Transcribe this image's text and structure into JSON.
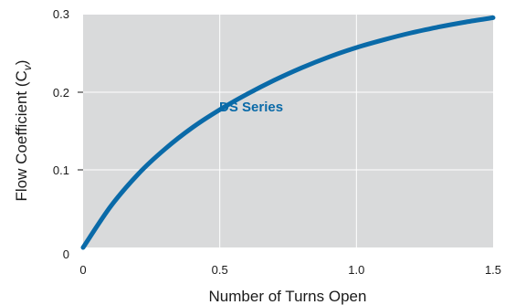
{
  "chart_data": {
    "type": "line",
    "xlabel": "Number of Turns Open",
    "ylabel_main": "Flow Coefficient (C",
    "ylabel_sub": "v",
    "ylabel_close": ")",
    "xlim": [
      0,
      1.5
    ],
    "ylim": [
      0,
      0.3
    ],
    "x_ticks": [
      "0",
      "0.5",
      "1.0",
      "1.5"
    ],
    "y_ticks": [
      "0",
      "0.1",
      "0.2",
      "0.3"
    ],
    "grid": true,
    "colors": {
      "plot_background": "#d9dadb",
      "grid": "#ffffff",
      "series": "#0a6aa8"
    },
    "series": [
      {
        "name": "DS Series",
        "x": [
          0,
          0.1,
          0.2,
          0.3,
          0.4,
          0.5,
          0.6,
          0.7,
          0.8,
          0.9,
          1.0,
          1.1,
          1.2,
          1.3,
          1.4,
          1.5
        ],
        "y": [
          0.0,
          0.0525,
          0.094,
          0.127,
          0.1545,
          0.1775,
          0.1975,
          0.2155,
          0.2315,
          0.2455,
          0.2575,
          0.2675,
          0.2765,
          0.284,
          0.2905,
          0.296
        ]
      }
    ]
  }
}
